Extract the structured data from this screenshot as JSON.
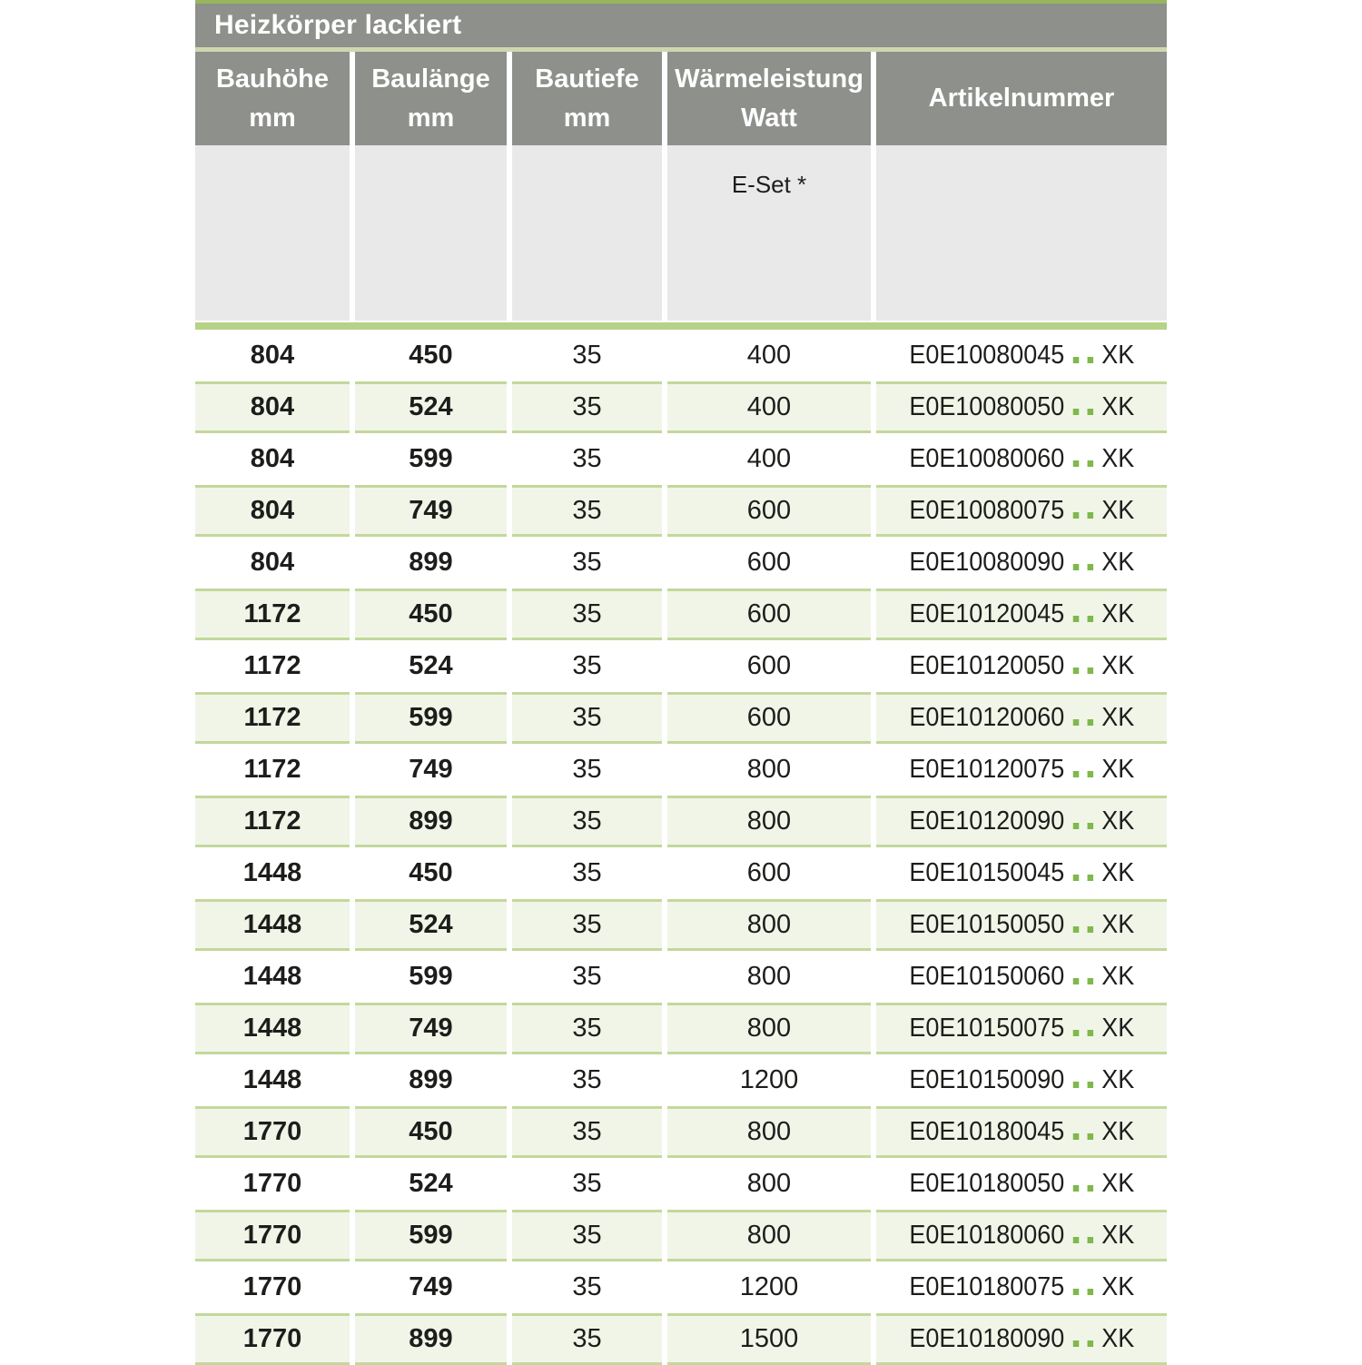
{
  "page": {
    "title_bar": "Heizkörper lackiert"
  },
  "table": {
    "columns": [
      {
        "label": "Bauhöhe",
        "unit": "mm"
      },
      {
        "label": "Baulänge",
        "unit": "mm"
      },
      {
        "label": "Bautiefe",
        "unit": "mm"
      },
      {
        "label": "Wärmeleistung",
        "unit": "Watt"
      },
      {
        "label": "Artikelnummer",
        "unit": ""
      }
    ],
    "subheader_note": "E-Set *",
    "rows": [
      {
        "bauhoehe_mm": "804",
        "baulaenge_mm": "450",
        "bautiefe_mm": "35",
        "waermeleistung_watt": "400",
        "artikel_prefix": "E0E10080045",
        "artikel_dots": "..",
        "artikel_suffix": "XK"
      },
      {
        "bauhoehe_mm": "804",
        "baulaenge_mm": "524",
        "bautiefe_mm": "35",
        "waermeleistung_watt": "400",
        "artikel_prefix": "E0E10080050",
        "artikel_dots": "..",
        "artikel_suffix": "XK"
      },
      {
        "bauhoehe_mm": "804",
        "baulaenge_mm": "599",
        "bautiefe_mm": "35",
        "waermeleistung_watt": "400",
        "artikel_prefix": "E0E10080060",
        "artikel_dots": "..",
        "artikel_suffix": "XK"
      },
      {
        "bauhoehe_mm": "804",
        "baulaenge_mm": "749",
        "bautiefe_mm": "35",
        "waermeleistung_watt": "600",
        "artikel_prefix": "E0E10080075",
        "artikel_dots": "..",
        "artikel_suffix": "XK"
      },
      {
        "bauhoehe_mm": "804",
        "baulaenge_mm": "899",
        "bautiefe_mm": "35",
        "waermeleistung_watt": "600",
        "artikel_prefix": "E0E10080090",
        "artikel_dots": "..",
        "artikel_suffix": "XK"
      },
      {
        "bauhoehe_mm": "1172",
        "baulaenge_mm": "450",
        "bautiefe_mm": "35",
        "waermeleistung_watt": "600",
        "artikel_prefix": "E0E10120045",
        "artikel_dots": "..",
        "artikel_suffix": "XK"
      },
      {
        "bauhoehe_mm": "1172",
        "baulaenge_mm": "524",
        "bautiefe_mm": "35",
        "waermeleistung_watt": "600",
        "artikel_prefix": "E0E10120050",
        "artikel_dots": "..",
        "artikel_suffix": "XK"
      },
      {
        "bauhoehe_mm": "1172",
        "baulaenge_mm": "599",
        "bautiefe_mm": "35",
        "waermeleistung_watt": "600",
        "artikel_prefix": "E0E10120060",
        "artikel_dots": "..",
        "artikel_suffix": "XK"
      },
      {
        "bauhoehe_mm": "1172",
        "baulaenge_mm": "749",
        "bautiefe_mm": "35",
        "waermeleistung_watt": "800",
        "artikel_prefix": "E0E10120075",
        "artikel_dots": "..",
        "artikel_suffix": "XK"
      },
      {
        "bauhoehe_mm": "1172",
        "baulaenge_mm": "899",
        "bautiefe_mm": "35",
        "waermeleistung_watt": "800",
        "artikel_prefix": "E0E10120090",
        "artikel_dots": "..",
        "artikel_suffix": "XK"
      },
      {
        "bauhoehe_mm": "1448",
        "baulaenge_mm": "450",
        "bautiefe_mm": "35",
        "waermeleistung_watt": "600",
        "artikel_prefix": "E0E10150045",
        "artikel_dots": "..",
        "artikel_suffix": "XK"
      },
      {
        "bauhoehe_mm": "1448",
        "baulaenge_mm": "524",
        "bautiefe_mm": "35",
        "waermeleistung_watt": "800",
        "artikel_prefix": "E0E10150050",
        "artikel_dots": "..",
        "artikel_suffix": "XK"
      },
      {
        "bauhoehe_mm": "1448",
        "baulaenge_mm": "599",
        "bautiefe_mm": "35",
        "waermeleistung_watt": "800",
        "artikel_prefix": "E0E10150060",
        "artikel_dots": "..",
        "artikel_suffix": "XK"
      },
      {
        "bauhoehe_mm": "1448",
        "baulaenge_mm": "749",
        "bautiefe_mm": "35",
        "waermeleistung_watt": "800",
        "artikel_prefix": "E0E10150075",
        "artikel_dots": "..",
        "artikel_suffix": "XK"
      },
      {
        "bauhoehe_mm": "1448",
        "baulaenge_mm": "899",
        "bautiefe_mm": "35",
        "waermeleistung_watt": "1200",
        "artikel_prefix": "E0E10150090",
        "artikel_dots": "..",
        "artikel_suffix": "XK"
      },
      {
        "bauhoehe_mm": "1770",
        "baulaenge_mm": "450",
        "bautiefe_mm": "35",
        "waermeleistung_watt": "800",
        "artikel_prefix": "E0E10180045",
        "artikel_dots": "..",
        "artikel_suffix": "XK"
      },
      {
        "bauhoehe_mm": "1770",
        "baulaenge_mm": "524",
        "bautiefe_mm": "35",
        "waermeleistung_watt": "800",
        "artikel_prefix": "E0E10180050",
        "artikel_dots": "..",
        "artikel_suffix": "XK"
      },
      {
        "bauhoehe_mm": "1770",
        "baulaenge_mm": "599",
        "bautiefe_mm": "35",
        "waermeleistung_watt": "800",
        "artikel_prefix": "E0E10180060",
        "artikel_dots": "..",
        "artikel_suffix": "XK"
      },
      {
        "bauhoehe_mm": "1770",
        "baulaenge_mm": "749",
        "bautiefe_mm": "35",
        "waermeleistung_watt": "1200",
        "artikel_prefix": "E0E10180075",
        "artikel_dots": "..",
        "artikel_suffix": "XK"
      },
      {
        "bauhoehe_mm": "1770",
        "baulaenge_mm": "899",
        "bautiefe_mm": "35",
        "waermeleistung_watt": "1500",
        "artikel_prefix": "E0E10180090",
        "artikel_dots": "..",
        "artikel_suffix": "XK"
      }
    ]
  },
  "colors": {
    "header_gray": "#8e908c",
    "subheader_gray": "#e9e9e9",
    "green_top_line": "#97b65e",
    "green_under_title": "#ccd7af",
    "green_separator": "#b6d287",
    "row_green_bg": "#f1f5e8",
    "row_green_border": "#c3d89b",
    "accent_dot_green": "#7fb84c",
    "text_dark": "#1d1d1b",
    "header_text": "#ffffff"
  }
}
